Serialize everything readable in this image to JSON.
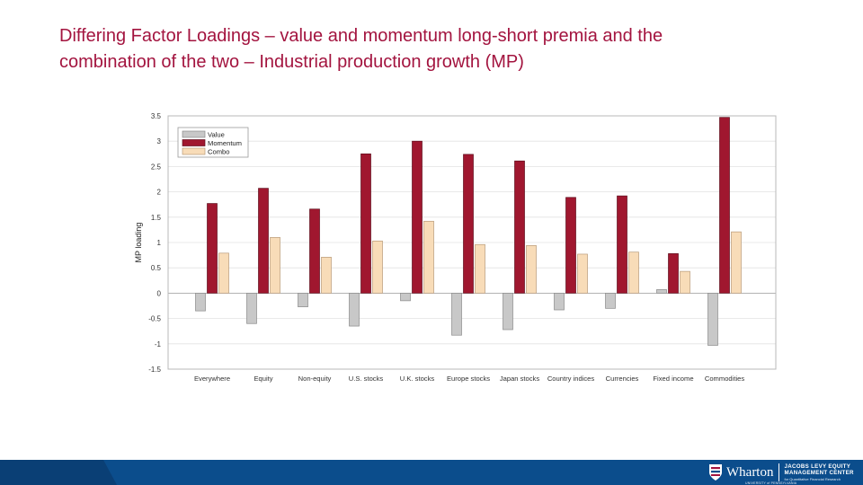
{
  "title": {
    "line1": "Differing Factor Loadings – value and momentum long-short premia and the",
    "line2": "combination of the two – Industrial production growth (MP)"
  },
  "chart_data": {
    "type": "bar",
    "title": "",
    "xlabel": "",
    "ylabel": "MP loading",
    "ylim": [
      -1.5,
      3.5
    ],
    "yticks": [
      3.5,
      3,
      2.5,
      2,
      1.5,
      1,
      0.5,
      0,
      -0.5,
      -1,
      -1.5
    ],
    "grid": true,
    "legend_position": "top-left",
    "categories": [
      "Everywhere",
      "Equity",
      "Non-equity",
      "U.S. stocks",
      "U.K. stocks",
      "Europe stocks",
      "Japan stocks",
      "Country indices",
      "Currencies",
      "Fixed income",
      "Commodities"
    ],
    "series": [
      {
        "name": "Value",
        "color": "#c8c8c8",
        "values": [
          -0.35,
          -0.6,
          -0.27,
          -0.65,
          -0.15,
          -0.83,
          -0.72,
          -0.33,
          -0.3,
          0.07,
          -1.03
        ]
      },
      {
        "name": "Momentum",
        "color": "#a0172f",
        "values": [
          1.77,
          2.07,
          1.66,
          2.75,
          3.0,
          2.74,
          2.61,
          1.89,
          1.92,
          0.78,
          3.47
        ]
      },
      {
        "name": "Combo",
        "color": "#f8dcb8",
        "values": [
          0.79,
          1.1,
          0.71,
          1.03,
          1.42,
          0.96,
          0.94,
          0.77,
          0.81,
          0.43,
          1.21
        ]
      }
    ]
  },
  "footer": {
    "brand": "Wharton",
    "brand_sub": "UNIVERSITY of PENNSYLVANIA",
    "center_line1": "JACOBS LEVY EQUITY",
    "center_line2": "MANAGEMENT CENTER",
    "center_line3": "for Quantitative Financial Research",
    "colors": {
      "bar": "#0b4d8c",
      "accent": "#0a3f75"
    }
  }
}
